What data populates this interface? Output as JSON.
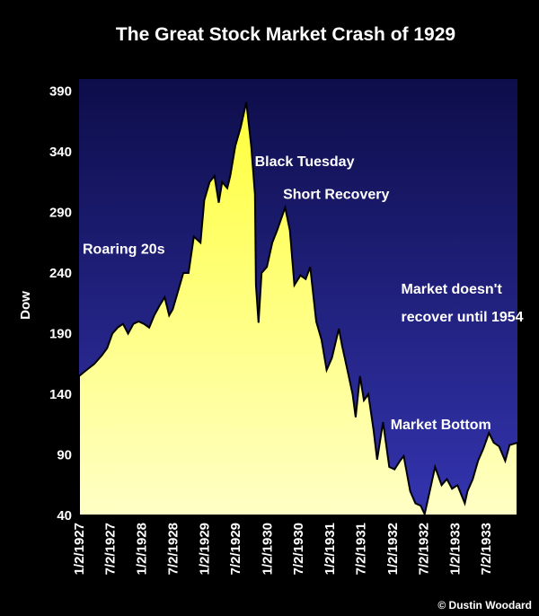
{
  "chart_data": {
    "type": "area",
    "title": "The Great Stock Market Crash of 1929",
    "xlabel": "",
    "ylabel": "Dow",
    "ylim": [
      40,
      400
    ],
    "yticks": [
      40,
      90,
      140,
      190,
      240,
      290,
      340,
      390
    ],
    "xticks": [
      "1/2/1927",
      "7/2/1927",
      "1/2/1928",
      "7/2/1928",
      "1/2/1929",
      "7/2/1929",
      "1/2/1930",
      "7/2/1930",
      "1/2/1931",
      "7/2/1931",
      "1/2/1932",
      "7/2/1932",
      "1/2/1933",
      "7/2/1933"
    ],
    "x_range": [
      "1927-01-02",
      "1933-12-31"
    ],
    "grid": false,
    "legend": "none",
    "colors": {
      "plot_top": "#0d0d4a",
      "plot_bottom": "#3434b0",
      "fill_top": "#ffff3c",
      "fill_bottom": "#ffffc6",
      "line": "#000000"
    },
    "series": [
      {
        "points": [
          [
            "1927-01-02",
            155
          ],
          [
            "1927-02-15",
            160
          ],
          [
            "1927-04-01",
            165
          ],
          [
            "1927-05-15",
            172
          ],
          [
            "1927-06-15",
            178
          ],
          [
            "1927-07-15",
            190
          ],
          [
            "1927-08-15",
            195
          ],
          [
            "1927-09-15",
            198
          ],
          [
            "1927-10-15",
            190
          ],
          [
            "1927-11-15",
            198
          ],
          [
            "1927-12-15",
            200
          ],
          [
            "1928-01-15",
            198
          ],
          [
            "1928-02-15",
            195
          ],
          [
            "1928-03-15",
            205
          ],
          [
            "1928-04-15",
            213
          ],
          [
            "1928-05-15",
            220
          ],
          [
            "1928-06-10",
            205
          ],
          [
            "1928-07-01",
            210
          ],
          [
            "1928-08-01",
            225
          ],
          [
            "1928-09-01",
            240
          ],
          [
            "1928-10-01",
            240
          ],
          [
            "1928-11-01",
            270
          ],
          [
            "1928-12-10",
            265
          ],
          [
            "1929-01-01",
            300
          ],
          [
            "1929-02-01",
            315
          ],
          [
            "1929-03-01",
            320
          ],
          [
            "1929-03-26",
            298
          ],
          [
            "1929-04-15",
            315
          ],
          [
            "1929-05-15",
            310
          ],
          [
            "1929-06-01",
            320
          ],
          [
            "1929-07-01",
            345
          ],
          [
            "1929-08-01",
            360
          ],
          [
            "1929-09-03",
            381
          ],
          [
            "1929-10-01",
            345
          ],
          [
            "1929-10-23",
            305
          ],
          [
            "1929-10-29",
            230
          ],
          [
            "1929-11-13",
            199
          ],
          [
            "1929-12-01",
            240
          ],
          [
            "1930-01-01",
            245
          ],
          [
            "1930-02-01",
            265
          ],
          [
            "1930-03-01",
            275
          ],
          [
            "1930-04-17",
            294
          ],
          [
            "1930-05-15",
            275
          ],
          [
            "1930-06-10",
            230
          ],
          [
            "1930-07-15",
            238
          ],
          [
            "1930-08-15",
            235
          ],
          [
            "1930-09-10",
            245
          ],
          [
            "1930-10-15",
            200
          ],
          [
            "1930-11-15",
            185
          ],
          [
            "1930-12-15",
            160
          ],
          [
            "1931-01-15",
            170
          ],
          [
            "1931-02-24",
            194
          ],
          [
            "1931-03-15",
            180
          ],
          [
            "1931-04-15",
            160
          ],
          [
            "1931-05-15",
            140
          ],
          [
            "1931-06-02",
            121
          ],
          [
            "1931-06-27",
            155
          ],
          [
            "1931-07-20",
            135
          ],
          [
            "1931-08-15",
            140
          ],
          [
            "1931-09-15",
            110
          ],
          [
            "1931-10-05",
            86
          ],
          [
            "1931-11-09",
            117
          ],
          [
            "1931-12-15",
            80
          ],
          [
            "1932-01-15",
            78
          ],
          [
            "1932-02-15",
            85
          ],
          [
            "1932-03-08",
            89
          ],
          [
            "1932-04-15",
            60
          ],
          [
            "1932-05-15",
            50
          ],
          [
            "1932-06-15",
            48
          ],
          [
            "1932-07-08",
            41
          ],
          [
            "1932-08-15",
            65
          ],
          [
            "1932-09-07",
            80
          ],
          [
            "1932-10-15",
            65
          ],
          [
            "1932-11-15",
            70
          ],
          [
            "1932-12-15",
            62
          ],
          [
            "1933-01-15",
            65
          ],
          [
            "1933-02-27",
            50
          ],
          [
            "1933-03-15",
            60
          ],
          [
            "1933-04-15",
            70
          ],
          [
            "1933-05-15",
            85
          ],
          [
            "1933-06-15",
            95
          ],
          [
            "1933-07-18",
            108
          ],
          [
            "1933-08-15",
            100
          ],
          [
            "1933-09-15",
            97
          ],
          [
            "1933-10-21",
            85
          ],
          [
            "1933-11-15",
            98
          ],
          [
            "1933-12-31",
            100
          ]
        ]
      }
    ],
    "annotations": [
      {
        "id": "roaring",
        "text": "Roaring 20s",
        "x": "1927-01-02",
        "y": 256
      },
      {
        "id": "black-tuesday",
        "text": "Black Tuesday",
        "x": "1929-10-01",
        "y": 328
      },
      {
        "id": "short-recovery",
        "text": "Short Recovery",
        "x": "1930-03-15",
        "y": 301
      },
      {
        "id": "doesnt-recover-1",
        "text": "Market doesn't",
        "x": "1932-02-01",
        "y": 223
      },
      {
        "id": "doesnt-recover-2",
        "text": "recover until 1954",
        "x": "1932-02-01",
        "y": 200
      },
      {
        "id": "market-bottom",
        "text": "Market Bottom",
        "x": "1931-12-01",
        "y": 111
      }
    ]
  },
  "credit": "© Dustin Woodard"
}
